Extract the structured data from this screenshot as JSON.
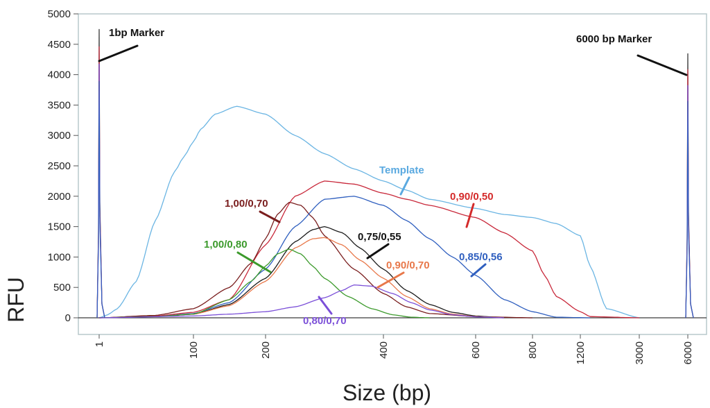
{
  "chart_data": {
    "type": "line",
    "title": "",
    "xlabel": "Size (bp)",
    "ylabel": "RFU",
    "ylim": [
      0,
      5000
    ],
    "yticks": [
      0,
      500,
      1000,
      1500,
      2000,
      2500,
      3000,
      3500,
      4000,
      4500,
      5000
    ],
    "xticks": [
      "1",
      "100",
      "200",
      "400",
      "600",
      "800",
      "1200",
      "3000",
      "6000"
    ],
    "grid": false,
    "markers": [
      {
        "label": "1bp Marker",
        "x": "1",
        "peak": 4750
      },
      {
        "label": "6000 bp Marker",
        "x": "6000",
        "peak": 4350
      }
    ],
    "series": [
      {
        "name": "Template",
        "color": "#6bb5e3",
        "x": [
          1,
          10,
          20,
          40,
          60,
          80,
          90,
          100,
          110,
          130,
          160,
          200,
          250,
          300,
          350,
          400,
          450,
          500,
          600,
          700,
          800,
          1000,
          1200,
          1500,
          2000,
          3000
        ],
        "y": [
          0,
          50,
          150,
          600,
          1600,
          2400,
          2650,
          2900,
          3100,
          3350,
          3480,
          3350,
          3000,
          2700,
          2450,
          2250,
          2100,
          1950,
          1800,
          1700,
          1650,
          1550,
          1350,
          850,
          150,
          0
        ]
      },
      {
        "name": "0,90/0,50",
        "color": "#c8283a",
        "x": [
          1,
          60,
          100,
          150,
          200,
          250,
          300,
          350,
          400,
          450,
          500,
          600,
          700,
          800,
          900,
          1000,
          1200,
          1500,
          3000
        ],
        "y": [
          0,
          30,
          90,
          300,
          1200,
          2000,
          2250,
          2200,
          2050,
          1950,
          1850,
          1650,
          1400,
          1100,
          700,
          350,
          100,
          20,
          0
        ]
      },
      {
        "name": "1,00/0,70",
        "color": "#7a1e1e",
        "x": [
          1,
          60,
          100,
          150,
          180,
          200,
          220,
          240,
          260,
          280,
          300,
          350,
          400,
          450,
          500,
          600,
          800
        ],
        "y": [
          0,
          40,
          150,
          500,
          900,
          1300,
          1700,
          1900,
          1850,
          1650,
          1350,
          800,
          400,
          180,
          70,
          20,
          0
        ]
      },
      {
        "name": "0,85/0,56",
        "color": "#2f5fbf",
        "x": [
          1,
          60,
          100,
          150,
          200,
          250,
          300,
          350,
          400,
          450,
          500,
          550,
          600,
          700,
          800,
          1000,
          1500
        ],
        "y": [
          0,
          20,
          70,
          250,
          800,
          1500,
          1950,
          2000,
          1850,
          1600,
          1300,
          1000,
          700,
          300,
          100,
          10,
          0
        ]
      },
      {
        "name": "0,75/0,55",
        "color": "#1a1a1a",
        "x": [
          1,
          60,
          100,
          150,
          200,
          250,
          280,
          300,
          330,
          360,
          400,
          450,
          500,
          550,
          600,
          700
        ],
        "y": [
          0,
          20,
          60,
          220,
          650,
          1250,
          1450,
          1500,
          1400,
          1150,
          800,
          450,
          220,
          90,
          30,
          0
        ]
      },
      {
        "name": "0,90/0,70",
        "color": "#e8784a",
        "x": [
          1,
          60,
          100,
          150,
          200,
          250,
          280,
          300,
          330,
          360,
          400,
          450,
          500,
          550,
          600,
          700
        ],
        "y": [
          0,
          20,
          60,
          200,
          600,
          1150,
          1300,
          1320,
          1200,
          950,
          650,
          350,
          150,
          60,
          20,
          0
        ]
      },
      {
        "name": "1,00/0,80",
        "color": "#3c9a2c",
        "x": [
          1,
          60,
          100,
          150,
          180,
          200,
          220,
          240,
          260,
          280,
          300,
          340,
          380,
          420,
          460,
          500
        ],
        "y": [
          0,
          20,
          60,
          300,
          600,
          850,
          1050,
          1130,
          1050,
          850,
          650,
          350,
          150,
          50,
          10,
          0
        ]
      },
      {
        "name": "0,80/0,70",
        "color": "#7b4fd8",
        "x": [
          1,
          100,
          150,
          200,
          250,
          300,
          330,
          350,
          380,
          420,
          460,
          500,
          550,
          600,
          700
        ],
        "y": [
          0,
          30,
          60,
          100,
          180,
          330,
          450,
          540,
          520,
          400,
          250,
          130,
          50,
          15,
          0
        ]
      }
    ],
    "annotations": [
      {
        "text": "1bp Marker",
        "color": "#111111"
      },
      {
        "text": "6000 bp Marker",
        "color": "#111111"
      },
      {
        "text": "Template",
        "color": "#5aa9e0"
      },
      {
        "text": "0,90/0,50",
        "color": "#d42a2a"
      },
      {
        "text": "1,00/0,70",
        "color": "#7a1e1e"
      },
      {
        "text": "0,75/0,55",
        "color": "#111111"
      },
      {
        "text": "0,85/0,56",
        "color": "#2f5fbf"
      },
      {
        "text": "1,00/0,80",
        "color": "#3c9a2c"
      },
      {
        "text": "0,90/0,70",
        "color": "#e8784a"
      },
      {
        "text": "0,80/0,70",
        "color": "#7b4fd8"
      }
    ]
  }
}
